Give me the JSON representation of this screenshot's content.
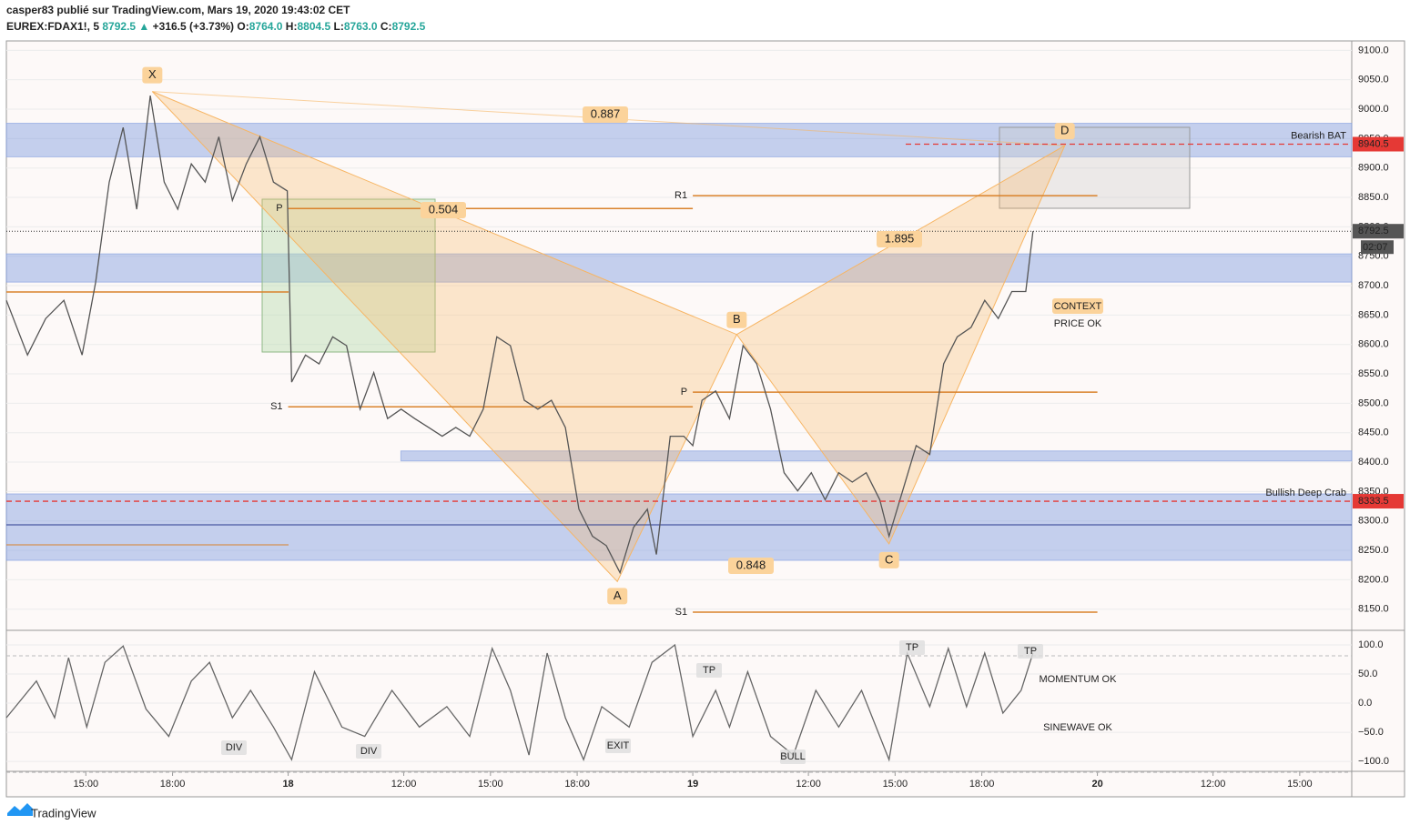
{
  "header": {
    "title": "casper83 publié sur TradingView.com, Mars 19, 2020 19:43:02 CET",
    "symbol": "EUREX:FDAX1!, 5",
    "price": "8792.5",
    "change": "+316.5 (+3.73%)",
    "o_label": "O:",
    "o": "8764.0",
    "h_label": "H:",
    "h": "8804.5",
    "l_label": "L:",
    "l": "8763.0",
    "c_label": "C:",
    "c": "8792.5"
  },
  "footer": {
    "brand": "TradingView"
  },
  "chart_data": [
    {
      "type": "line",
      "color": "#555555",
      "xlim": [
        12.25,
        58.8
      ],
      "ylim": [
        8114,
        9116
      ],
      "yticks": [
        {
          "value": 8150,
          "label": "8150.0"
        },
        {
          "value": 8200,
          "label": "8200.0"
        },
        {
          "value": 8250,
          "label": "8250.0"
        },
        {
          "value": 8300,
          "label": "8300.0"
        },
        {
          "value": 8350,
          "label": "8350.0"
        },
        {
          "value": 8400,
          "label": "8400.0"
        },
        {
          "value": 8450,
          "label": "8450.0"
        },
        {
          "value": 8500,
          "label": "8500.0"
        },
        {
          "value": 8550,
          "label": "8550.0"
        },
        {
          "value": 8600,
          "label": "8600.0"
        },
        {
          "value": 8650,
          "label": "8650.0"
        },
        {
          "value": 8700,
          "label": "8700.0"
        },
        {
          "value": 8750,
          "label": "8750.0"
        },
        {
          "value": 8800,
          "label": "8800.0"
        },
        {
          "value": 8850,
          "label": "8850.0"
        },
        {
          "value": 8900,
          "label": "8900.0"
        },
        {
          "value": 8950,
          "label": "8950.0"
        },
        {
          "value": 9000,
          "label": "9000.0"
        },
        {
          "value": 9050,
          "label": "9050.0"
        },
        {
          "value": 9100,
          "label": "9100.0"
        }
      ],
      "grid": true,
      "x": [
        12.25,
        12.98,
        13.61,
        14.24,
        14.87,
        15.34,
        15.81,
        16.29,
        16.76,
        17.23,
        17.71,
        18.18,
        18.65,
        19.13,
        19.6,
        20.07,
        20.55,
        21.02,
        21.49,
        21.97,
        22.12,
        22.6,
        23.07,
        23.54,
        24.02,
        24.49,
        24.96,
        25.44,
        25.91,
        26.38,
        26.86,
        27.33,
        27.8,
        28.28,
        28.75,
        29.22,
        29.69,
        30.17,
        30.64,
        31.11,
        31.59,
        32.06,
        32.53,
        33.01,
        33.48,
        33.95,
        34.43,
        34.74,
        35.22,
        35.69,
        36.0,
        36.32,
        36.79,
        37.27,
        37.74,
        38.21,
        38.69,
        39.16,
        39.63,
        40.1,
        40.58,
        41.05,
        41.52,
        42.0,
        42.47,
        42.79,
        43.26,
        43.73,
        44.2,
        44.68,
        45.15,
        45.63,
        46.1,
        46.57,
        47.04,
        47.52,
        47.77
      ],
      "values": [
        8675,
        8582,
        8644,
        8675,
        8582,
        8706,
        8876,
        8969,
        8830,
        9023,
        8876,
        8830,
        8907,
        8876,
        8953,
        8845,
        8907,
        8953,
        8876,
        8861,
        8536,
        8582,
        8567,
        8613,
        8598,
        8490,
        8552,
        8474,
        8490,
        8474,
        8459,
        8444,
        8459,
        8444,
        8490,
        8613,
        8598,
        8505,
        8490,
        8505,
        8459,
        8320,
        8274,
        8258,
        8212,
        8289,
        8320,
        8243,
        8444,
        8444,
        8428,
        8505,
        8521,
        8474,
        8598,
        8567,
        8490,
        8382,
        8351,
        8382,
        8336,
        8382,
        8366,
        8382,
        8336,
        8274,
        8351,
        8428,
        8413,
        8567,
        8613,
        8629,
        8675,
        8644,
        8690,
        8690,
        8792.5
      ],
      "zones": [
        {
          "low": 8919,
          "high": 8976
        },
        {
          "low": 8706,
          "high": 8754
        },
        {
          "low": 8402,
          "high": 8419,
          "from": 25.9
        },
        {
          "low": 8233,
          "high": 8346
        }
      ],
      "hlines": [
        {
          "value": 8940.5,
          "label": "8940.5",
          "color": "#e53935",
          "name": "Bearish BAT"
        },
        {
          "value": 8333.5,
          "label": "8333.5",
          "color": "#e53935",
          "name": "Bullish Deep Crab"
        }
      ],
      "last": {
        "value": 8792.5,
        "label": "8792.5",
        "countdown": "02:07"
      },
      "pivots": [
        {
          "label": "P",
          "value": 8831,
          "from": 22.0,
          "to": 36.0
        },
        {
          "label": "S1",
          "value": 8494,
          "from": 22.0,
          "to": 36.0
        },
        {
          "label": "R1",
          "value": 8853,
          "from": 36.0,
          "to": 50.0
        },
        {
          "label": "P",
          "value": 8519,
          "from": 36.0,
          "to": 50.0
        },
        {
          "label": "S1",
          "value": 8145,
          "from": 36.0,
          "to": 50.0
        }
      ],
      "pattern": {
        "points": [
          {
            "label": "X",
            "x": 17.3,
            "y": 9030
          },
          {
            "label": "A",
            "x": 33.39,
            "y": 8197
          },
          {
            "label": "B",
            "x": 37.52,
            "y": 8617
          },
          {
            "label": "C",
            "x": 42.79,
            "y": 8261
          },
          {
            "label": "D",
            "x": 48.87,
            "y": 8938
          }
        ],
        "ratios": [
          "0.887",
          "0.504",
          "1.895",
          "0.848"
        ],
        "color": "#f7b563"
      },
      "annotations": [
        "CONTEXT",
        "PRICE OK"
      ]
    },
    {
      "type": "line",
      "color": "#666666",
      "xlim": [
        12.25,
        58.8
      ],
      "ylim": [
        -117,
        125
      ],
      "yticks": [
        {
          "value": 100,
          "label": "100.0"
        },
        {
          "value": 50,
          "label": "50.0"
        },
        {
          "value": 0,
          "label": "0.0"
        },
        {
          "value": -50,
          "label": "−50.0"
        },
        {
          "value": -100,
          "label": "−100.0"
        }
      ],
      "xticks": [
        {
          "value": 15,
          "label": "15:00"
        },
        {
          "value": 18,
          "label": "18:00"
        },
        {
          "value": 22,
          "label": "18"
        },
        {
          "value": 26,
          "label": "12:00"
        },
        {
          "value": 29,
          "label": "15:00"
        },
        {
          "value": 32,
          "label": "18:00"
        },
        {
          "value": 36,
          "label": "19"
        },
        {
          "value": 40,
          "label": "12:00"
        },
        {
          "value": 43,
          "label": "15:00"
        },
        {
          "value": 46,
          "label": "18:00"
        },
        {
          "value": 50,
          "label": "20"
        },
        {
          "value": 54,
          "label": "12:00"
        },
        {
          "value": 57,
          "label": "15:00"
        }
      ],
      "x": [
        12.25,
        13.29,
        13.92,
        14.4,
        15.03,
        15.66,
        16.29,
        17.08,
        17.87,
        18.65,
        19.28,
        20.07,
        20.7,
        21.49,
        22.12,
        22.91,
        23.86,
        24.65,
        25.59,
        26.54,
        27.49,
        28.28,
        29.06,
        29.69,
        30.33,
        30.96,
        31.59,
        32.22,
        32.85,
        33.8,
        34.59,
        35.38,
        36.0,
        36.79,
        37.27,
        37.9,
        38.69,
        39.48,
        40.26,
        41.05,
        41.84,
        42.79,
        43.42,
        44.2,
        44.84,
        45.47,
        46.1,
        46.73,
        47.36,
        47.77
      ],
      "values": [
        -25,
        38,
        -25,
        78,
        -41,
        70,
        98,
        -10,
        -57,
        38,
        70,
        -25,
        22,
        -41,
        -97,
        54,
        -41,
        -57,
        22,
        -41,
        -6,
        -57,
        94,
        22,
        -89,
        86,
        -25,
        -97,
        -6,
        -41,
        70,
        100,
        -57,
        22,
        -41,
        54,
        -57,
        -89,
        22,
        -41,
        22,
        -97,
        86,
        -6,
        94,
        -6,
        86,
        -17,
        22,
        86
      ],
      "labels": [
        "DIV",
        "DIV",
        "EXIT",
        "BULL",
        "TP",
        "TP",
        "TP"
      ],
      "annotations": [
        "MOMENTUM OK",
        "SINEWAVE OK"
      ]
    }
  ]
}
